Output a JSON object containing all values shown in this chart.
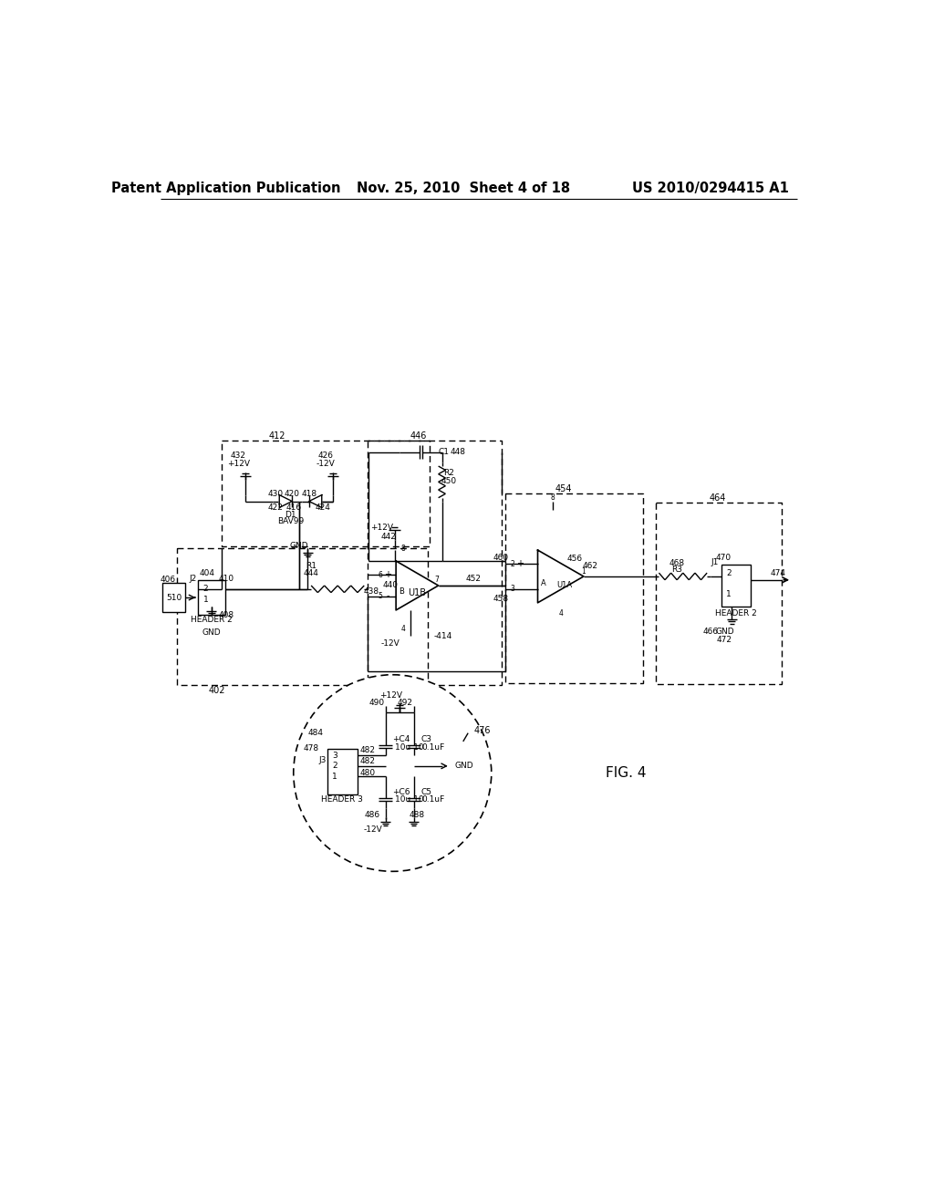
{
  "header_left": "Patent Application Publication",
  "header_center": "Nov. 25, 2010  Sheet 4 of 18",
  "header_right": "US 2010/0294415 A1",
  "fig_label": "FIG. 4",
  "background": "#ffffff",
  "line_color": "#000000",
  "header_font_size": 10.5,
  "body_font_size": 8.0,
  "small_font_size": 7.0,
  "tiny_font_size": 6.5
}
